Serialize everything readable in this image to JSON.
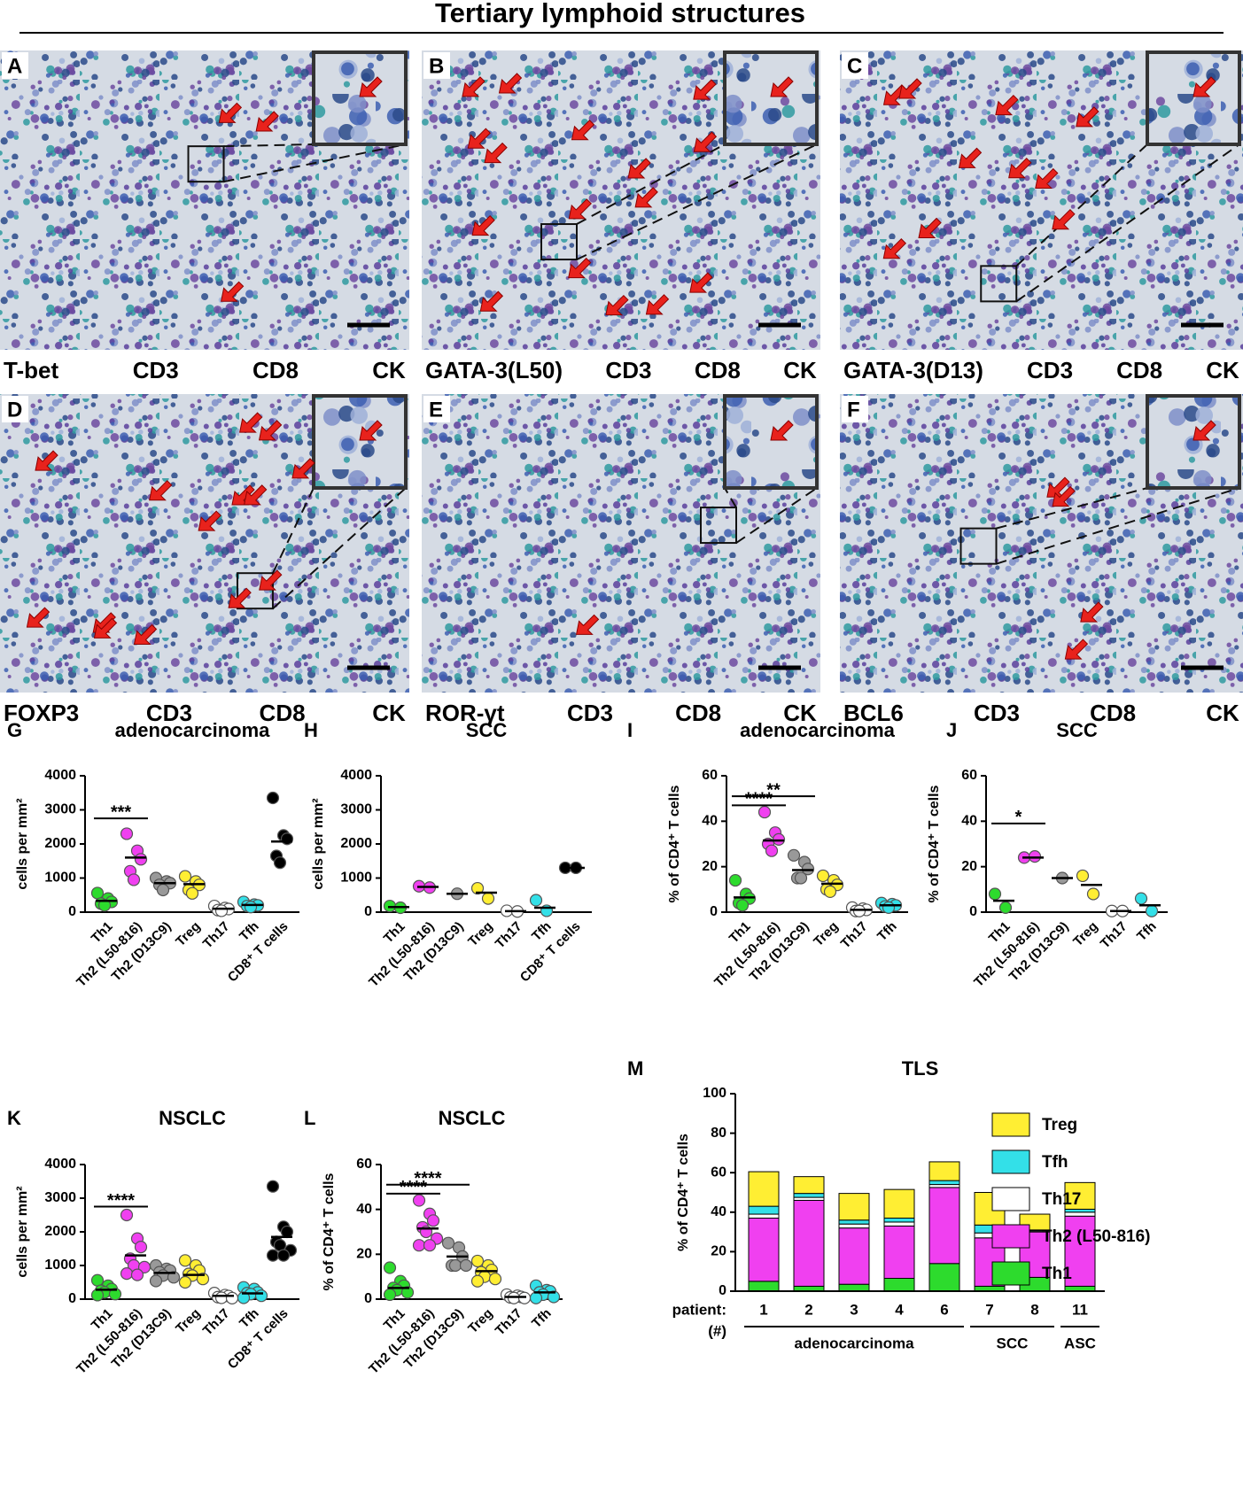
{
  "title": "Tertiary lymphoid structures",
  "panels": [
    {
      "letter": "A",
      "stains": [
        {
          "text": "T-bet",
          "color": "#6b3d17"
        },
        {
          "text": "CD3",
          "color": "#29a9df"
        },
        {
          "text": "CD8",
          "color": "#8b2c8f"
        },
        {
          "text": "CK",
          "color": "#f7941d"
        }
      ]
    },
    {
      "letter": "B",
      "stains": [
        {
          "text": "GATA-3(L50)",
          "color": "#6b3d17"
        },
        {
          "text": "CD3",
          "color": "#29a9df"
        },
        {
          "text": "CD8",
          "color": "#8b2c8f"
        },
        {
          "text": "CK",
          "color": "#f7941d"
        }
      ]
    },
    {
      "letter": "C",
      "stains": [
        {
          "text": "GATA-3(D13)",
          "color": "#6b3d17"
        },
        {
          "text": "CD3",
          "color": "#29a9df"
        },
        {
          "text": "CD8",
          "color": "#8b2c8f"
        },
        {
          "text": "CK",
          "color": "#f7941d"
        }
      ]
    },
    {
      "letter": "D",
      "stains": [
        {
          "text": "FOXP3",
          "color": "#6b3d17"
        },
        {
          "text": "CD3",
          "color": "#29a9df"
        },
        {
          "text": "CD8",
          "color": "#8b2c8f"
        },
        {
          "text": "CK",
          "color": "#f7941d"
        }
      ]
    },
    {
      "letter": "E",
      "stains": [
        {
          "text": "ROR-γt",
          "color": "#6b3d17"
        },
        {
          "text": "CD3",
          "color": "#29a9df"
        },
        {
          "text": "CD8",
          "color": "#8b2c8f"
        },
        {
          "text": "CK",
          "color": "#f7941d"
        }
      ]
    },
    {
      "letter": "F",
      "stains": [
        {
          "text": "BCL6",
          "color": "#6b3d17"
        },
        {
          "text": "CD3",
          "color": "#29a9df"
        },
        {
          "text": "CD8",
          "color": "#8b2c8f"
        },
        {
          "text": "CK",
          "color": "#f7941d"
        }
      ]
    }
  ],
  "chart_data": [
    {
      "type": "dot",
      "letter": "G",
      "title": "adenocarcinoma",
      "ylabel": "cells per mm²",
      "ylim": [
        0,
        4000
      ],
      "yticks": [
        0,
        1000,
        2000,
        3000,
        4000
      ],
      "groups": [
        {
          "name": "Th1",
          "color": "#2ddb2d",
          "points": [
            560,
            400,
            300,
            250,
            200
          ],
          "mean": 330
        },
        {
          "name": "Th2 (L50-816)",
          "color": "#f040f0",
          "points": [
            2300,
            1800,
            1550,
            1200,
            950
          ],
          "mean": 1600
        },
        {
          "name": "Th2 (D13C9)",
          "color": "#999999",
          "points": [
            1000,
            900,
            850,
            800,
            650
          ],
          "mean": 850
        },
        {
          "name": "Treg",
          "color": "#ffee33",
          "points": [
            1050,
            900,
            800,
            650,
            550
          ],
          "mean": 820
        },
        {
          "name": "Th17",
          "color": "#ffffff",
          "points": [
            180,
            120,
            90,
            60,
            40
          ],
          "mean": 100
        },
        {
          "name": "Tfh",
          "color": "#33e0e8",
          "points": [
            300,
            220,
            200,
            180,
            150
          ],
          "mean": 210
        },
        {
          "name": "CD8⁺ T cells",
          "color": "#000000",
          "points": [
            3350,
            2250,
            2150,
            1650,
            1450
          ],
          "mean": 2070
        }
      ],
      "significance": [
        {
          "label": "***",
          "from": 0,
          "to": 1,
          "y": 2750
        }
      ]
    },
    {
      "type": "dot",
      "letter": "H",
      "title": "SCC",
      "ylabel": "cells per mm²",
      "ylim": [
        0,
        4000
      ],
      "yticks": [
        0,
        1000,
        2000,
        3000,
        4000
      ],
      "groups": [
        {
          "name": "Th1",
          "color": "#2ddb2d",
          "points": [
            180,
            130
          ],
          "mean": 150
        },
        {
          "name": "Th2 (L50-816)",
          "color": "#f040f0",
          "points": [
            760,
            720
          ],
          "mean": 740
        },
        {
          "name": "Th2 (D13C9)",
          "color": "#999999",
          "points": [
            540
          ],
          "mean": 540
        },
        {
          "name": "Treg",
          "color": "#ffee33",
          "points": [
            700,
            400
          ],
          "mean": 570
        },
        {
          "name": "Th17",
          "color": "#ffffff",
          "points": [
            40,
            20
          ],
          "mean": 30
        },
        {
          "name": "Tfh",
          "color": "#33e0e8",
          "points": [
            350,
            40
          ],
          "mean": 130
        },
        {
          "name": "CD8⁺ T cells",
          "color": "#000000",
          "points": [
            1300,
            1300
          ],
          "mean": 1300
        }
      ],
      "significance": []
    },
    {
      "type": "dot",
      "letter": "I",
      "title": "adenocarcinoma",
      "ylabel": "% of CD4⁺ T cells",
      "ylim": [
        0,
        60
      ],
      "yticks": [
        0,
        20,
        40,
        60
      ],
      "groups": [
        {
          "name": "Th1",
          "color": "#2ddb2d",
          "points": [
            14,
            8,
            6,
            4,
            3
          ],
          "mean": 6.5
        },
        {
          "name": "Th2 (L50-816)",
          "color": "#f040f0",
          "points": [
            44,
            35,
            32,
            30,
            27
          ],
          "mean": 31.5
        },
        {
          "name": "Th2 (D13C9)",
          "color": "#999999",
          "points": [
            25,
            22,
            19,
            15,
            15
          ],
          "mean": 18.5
        },
        {
          "name": "Treg",
          "color": "#ffee33",
          "points": [
            16,
            14,
            12,
            10,
            9
          ],
          "mean": 12.5
        },
        {
          "name": "Th17",
          "color": "#ffffff",
          "points": [
            2,
            1.5,
            1,
            0.5,
            0.5
          ],
          "mean": 1
        },
        {
          "name": "Tfh",
          "color": "#33e0e8",
          "points": [
            4,
            3.5,
            3,
            2.5,
            2
          ],
          "mean": 3
        }
      ],
      "significance": [
        {
          "label": "****",
          "from": 0,
          "to": 1,
          "y": 47
        },
        {
          "label": "**",
          "from": 0,
          "to": 2,
          "y": 51
        }
      ]
    },
    {
      "type": "dot",
      "letter": "J",
      "title": "SCC",
      "ylabel": "% of CD4⁺ T cells",
      "ylim": [
        0,
        60
      ],
      "yticks": [
        0,
        20,
        40,
        60
      ],
      "groups": [
        {
          "name": "Th1",
          "color": "#2ddb2d",
          "points": [
            8,
            2
          ],
          "mean": 5
        },
        {
          "name": "Th2 (L50-816)",
          "color": "#f040f0",
          "points": [
            24,
            24.5
          ],
          "mean": 24
        },
        {
          "name": "Th2 (D13C9)",
          "color": "#999999",
          "points": [
            15
          ],
          "mean": 15
        },
        {
          "name": "Treg",
          "color": "#ffee33",
          "points": [
            16,
            8
          ],
          "mean": 12
        },
        {
          "name": "Th17",
          "color": "#ffffff",
          "points": [
            0.5,
            0.5
          ],
          "mean": 0.5
        },
        {
          "name": "Tfh",
          "color": "#33e0e8",
          "points": [
            6,
            0.5
          ],
          "mean": 3
        }
      ],
      "significance": [
        {
          "label": "*",
          "from": 0,
          "to": 1,
          "y": 39
        }
      ]
    },
    {
      "type": "dot",
      "letter": "K",
      "title": "NSCLC",
      "ylabel": "cells per mm²",
      "ylim": [
        0,
        4000
      ],
      "yticks": [
        0,
        1000,
        2000,
        3000,
        4000
      ],
      "groups": [
        {
          "name": "Th1",
          "color": "#2ddb2d",
          "points": [
            560,
            400,
            300,
            250,
            200,
            150,
            120
          ],
          "mean": 280
        },
        {
          "name": "Th2 (L50-816)",
          "color": "#f040f0",
          "points": [
            2500,
            1800,
            1550,
            1200,
            1000,
            950,
            760,
            720
          ],
          "mean": 1300
        },
        {
          "name": "Th2 (D13C9)",
          "color": "#999999",
          "points": [
            1000,
            900,
            850,
            800,
            700,
            650,
            540
          ],
          "mean": 780
        },
        {
          "name": "Treg",
          "color": "#ffee33",
          "points": [
            1150,
            1000,
            850,
            750,
            700,
            600,
            500
          ],
          "mean": 720
        },
        {
          "name": "Th17",
          "color": "#ffffff",
          "points": [
            180,
            120,
            90,
            60,
            40,
            30
          ],
          "mean": 100
        },
        {
          "name": "Tfh",
          "color": "#33e0e8",
          "points": [
            350,
            300,
            200,
            180,
            150,
            100,
            40
          ],
          "mean": 170
        },
        {
          "name": "CD8⁺ T cells",
          "color": "#000000",
          "points": [
            3350,
            2150,
            2000,
            1700,
            1600,
            1450,
            1300,
            1300
          ],
          "mean": 1850
        }
      ],
      "significance": [
        {
          "label": "****",
          "from": 0,
          "to": 1,
          "y": 2750
        }
      ]
    },
    {
      "type": "dot",
      "letter": "L",
      "title": "NSCLC",
      "ylabel": "% of CD4⁺ T cells",
      "ylim": [
        0,
        60
      ],
      "yticks": [
        0,
        20,
        40,
        60
      ],
      "groups": [
        {
          "name": "Th1",
          "color": "#2ddb2d",
          "points": [
            14,
            8,
            6,
            5,
            4,
            3,
            2
          ],
          "mean": 5
        },
        {
          "name": "Th2 (L50-816)",
          "color": "#f040f0",
          "points": [
            44,
            38,
            35,
            32,
            30,
            27,
            24,
            24
          ],
          "mean": 31.5
        },
        {
          "name": "Th2 (D13C9)",
          "color": "#999999",
          "points": [
            25,
            23,
            19,
            15,
            15,
            15
          ],
          "mean": 19
        },
        {
          "name": "Treg",
          "color": "#ffee33",
          "points": [
            17,
            15,
            13,
            12,
            10,
            9,
            8
          ],
          "mean": 12.5
        },
        {
          "name": "Th17",
          "color": "#ffffff",
          "points": [
            2,
            1.5,
            1,
            0.8,
            0.5,
            0.5
          ],
          "mean": 1
        },
        {
          "name": "Tfh",
          "color": "#33e0e8",
          "points": [
            6,
            4,
            3.5,
            3,
            2,
            1,
            0.5
          ],
          "mean": 3
        }
      ],
      "significance": [
        {
          "label": "****",
          "from": 0,
          "to": 1,
          "y": 47
        },
        {
          "label": "****",
          "from": 0,
          "to": 2,
          "y": 51
        }
      ]
    },
    {
      "type": "bar",
      "stacked": true,
      "letter": "M",
      "title": "TLS",
      "ylabel": "% of CD4⁺ T cells",
      "ylim": [
        0,
        100
      ],
      "yticks": [
        0,
        20,
        40,
        60,
        80,
        100
      ],
      "xlabel": "patient:",
      "xlabel_unit": "(#)",
      "categories": [
        "1",
        "2",
        "3",
        "4",
        "6",
        "7",
        "8",
        "11"
      ],
      "category_groups": [
        {
          "label": "adenocarcinoma",
          "span": [
            0,
            4
          ]
        },
        {
          "label": "SCC",
          "span": [
            5,
            6
          ]
        },
        {
          "label": "ASC",
          "span": [
            7,
            7
          ]
        }
      ],
      "series": [
        {
          "name": "Th1",
          "color": "#2ddb2d",
          "values": [
            5,
            2.5,
            3.5,
            6.5,
            14,
            2.5,
            7,
            2.5
          ]
        },
        {
          "name": "Th2 (L50-816)",
          "color": "#f040f0",
          "values": [
            32,
            43.5,
            28.5,
            26.5,
            38.5,
            24.5,
            23,
            35.5
          ]
        },
        {
          "name": "Th17",
          "color": "#ffffff",
          "values": [
            2,
            1.5,
            2,
            2,
            1.5,
            2.5,
            0.5,
            2
          ]
        },
        {
          "name": "Tfh",
          "color": "#33e0e8",
          "values": [
            4,
            2,
            2,
            2,
            2,
            4,
            0.5,
            1.5
          ]
        },
        {
          "name": "Treg",
          "color": "#ffee33",
          "values": [
            17.5,
            8.5,
            13.5,
            14.5,
            9.5,
            16.5,
            8,
            13.5
          ]
        }
      ],
      "legend": "right"
    }
  ]
}
